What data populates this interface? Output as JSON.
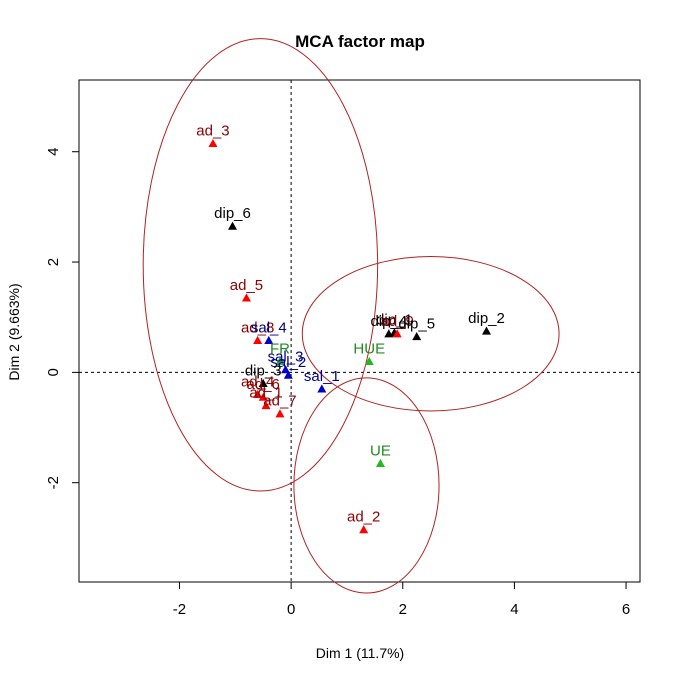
{
  "chart_data": {
    "type": "scatter",
    "title": "MCA factor map",
    "xlabel": "Dim 1 (11.7%)",
    "ylabel": "Dim 2 (9.663%)",
    "xlim": [
      -3.8,
      6.25
    ],
    "ylim": [
      -3.8,
      5.3
    ],
    "xticks": [
      -2,
      0,
      2,
      4,
      6
    ],
    "yticks": [
      -2,
      0,
      2,
      4
    ],
    "grid": false,
    "reference_lines": {
      "x": 0,
      "y": 0,
      "style": "dashed"
    },
    "colors": {
      "ad": "#8b0000",
      "ad_marker": "#ff0000",
      "dip": "#000000",
      "sal": "#00008b",
      "sal_marker": "#0000cd",
      "region": "#228b22",
      "region_marker": "#22b922",
      "ellipse": "#b22222"
    },
    "points": [
      {
        "label": "ad_3",
        "x": -1.4,
        "y": 4.15,
        "group": "ad"
      },
      {
        "label": "dip_6",
        "x": -1.05,
        "y": 2.65,
        "group": "dip"
      },
      {
        "label": "ad_5",
        "x": -0.8,
        "y": 1.35,
        "group": "ad"
      },
      {
        "label": "ad_8",
        "x": -0.6,
        "y": 0.58,
        "group": "ad"
      },
      {
        "label": "sal_4",
        "x": -0.4,
        "y": 0.58,
        "group": "sal"
      },
      {
        "label": "FR",
        "x": -0.2,
        "y": 0.2,
        "group": "region"
      },
      {
        "label": "sal_3",
        "x": -0.1,
        "y": 0.05,
        "group": "sal"
      },
      {
        "label": "sal_2",
        "x": -0.05,
        "y": -0.05,
        "group": "sal"
      },
      {
        "label": "dip_3",
        "x": -0.5,
        "y": -0.2,
        "group": "dip"
      },
      {
        "label": "ad_4",
        "x": -0.6,
        "y": -0.4,
        "group": "ad"
      },
      {
        "label": "ad_6",
        "x": -0.5,
        "y": -0.45,
        "group": "ad"
      },
      {
        "label": "ad_1",
        "x": -0.45,
        "y": -0.6,
        "group": "ad"
      },
      {
        "label": "ad_7",
        "x": -0.2,
        "y": -0.75,
        "group": "ad"
      },
      {
        "label": "sal_1",
        "x": 0.55,
        "y": -0.3,
        "group": "sal"
      },
      {
        "label": "HUE",
        "x": 1.4,
        "y": 0.2,
        "group": "region"
      },
      {
        "label": "dip_1",
        "x": 1.85,
        "y": 0.72,
        "group": "dip"
      },
      {
        "label": "dip_4",
        "x": 1.75,
        "y": 0.7,
        "group": "dip"
      },
      {
        "label": "ad_9",
        "x": 1.9,
        "y": 0.7,
        "group": "ad"
      },
      {
        "label": "dip_5",
        "x": 2.25,
        "y": 0.65,
        "group": "dip"
      },
      {
        "label": "dip_2",
        "x": 3.5,
        "y": 0.75,
        "group": "dip"
      },
      {
        "label": "UE",
        "x": 1.6,
        "y": -1.65,
        "group": "region"
      },
      {
        "label": "ad_2",
        "x": 1.3,
        "y": -2.85,
        "group": "ad"
      }
    ],
    "ellipses": [
      {
        "cx": -0.55,
        "cy": 1.95,
        "rx": 2.1,
        "ry": 4.1
      },
      {
        "cx": 2.5,
        "cy": 0.7,
        "rx": 2.3,
        "ry": 1.4
      },
      {
        "cx": 1.35,
        "cy": -2.05,
        "rx": 1.3,
        "ry": 1.95
      }
    ]
  }
}
